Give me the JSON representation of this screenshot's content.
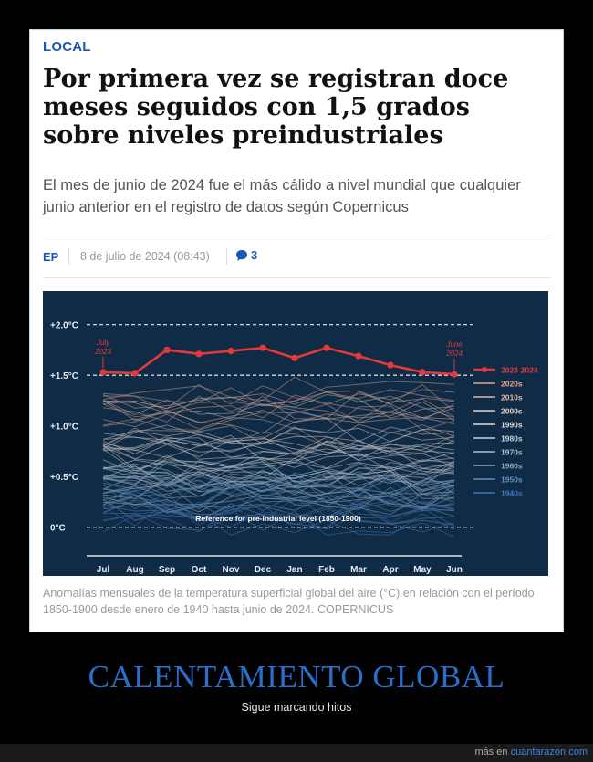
{
  "article": {
    "section": "LOCAL",
    "headline": "Por primera vez se registran doce meses seguidos con 1,5 grados sobre niveles preindustriales",
    "subtitle": "El mes de junio de 2024 fue el más cálido a nivel mundial que cualquier junio anterior en el registro de datos según Copernicus",
    "agency": "EP",
    "date": "8 de julio de 2024 (08:43)",
    "comment_count": "3",
    "caption": "Anomalías mensuales de la temperatura superficial global del aire (°C) en relación con el período 1850-1900 desde enero de 1940 hasta junio de 2024. COPERNICUS"
  },
  "page": {
    "big_title": "CALENTAMIENTO GLOBAL",
    "tagline": "Sigue marcando hitos",
    "footer_prefix": "más en",
    "footer_link": "cuantarazon.com"
  },
  "colors": {
    "accent": "#1a56b8",
    "chart_bg": "#0f2b45",
    "highlight_series": "#e23a3a",
    "title_blue": "#2a6ec8"
  },
  "icons": {
    "comments": "speech-bubble-icon"
  },
  "chart_data": {
    "type": "line",
    "categories": [
      "Jul",
      "Aug",
      "Sep",
      "Oct",
      "Nov",
      "Dec",
      "Jan",
      "Feb",
      "Mar",
      "Apr",
      "May",
      "Jun"
    ],
    "y_ticks": [
      "+2.0°C",
      "+1.5°C",
      "+1.0°C",
      "+0.5°C",
      "0°C"
    ],
    "ylim": [
      -0.3,
      2.15
    ],
    "highlight_series": {
      "name": "2023-2024",
      "values": [
        1.53,
        1.52,
        1.75,
        1.71,
        1.74,
        1.77,
        1.67,
        1.77,
        1.69,
        1.6,
        1.53,
        1.51
      ]
    },
    "start_label": "July 2023",
    "end_label": "June 2024",
    "reference_label": "Reference for pre-industrial level (1850-1900)",
    "legend": [
      "2023-2024",
      "2020s",
      "2010s",
      "2000s",
      "1990s",
      "1980s",
      "1970s",
      "1960s",
      "1950s",
      "1940s"
    ],
    "legend_position": "right",
    "decade_bands": [
      {
        "name": "2020s",
        "base": 1.2,
        "color": "#e8a890"
      },
      {
        "name": "2010s",
        "base": 1.05,
        "color": "#e2b8a8"
      },
      {
        "name": "2000s",
        "base": 0.85,
        "color": "#e6d2c8"
      },
      {
        "name": "1990s",
        "base": 0.68,
        "color": "#dddde0"
      },
      {
        "name": "1980s",
        "base": 0.55,
        "color": "#c8d2dc"
      },
      {
        "name": "1970s",
        "base": 0.4,
        "color": "#a9bfd2"
      },
      {
        "name": "1960s",
        "base": 0.32,
        "color": "#86a8c8"
      },
      {
        "name": "1950s",
        "base": 0.25,
        "color": "#6290c0"
      },
      {
        "name": "1940s",
        "base": 0.2,
        "color": "#3f78c0"
      }
    ]
  }
}
